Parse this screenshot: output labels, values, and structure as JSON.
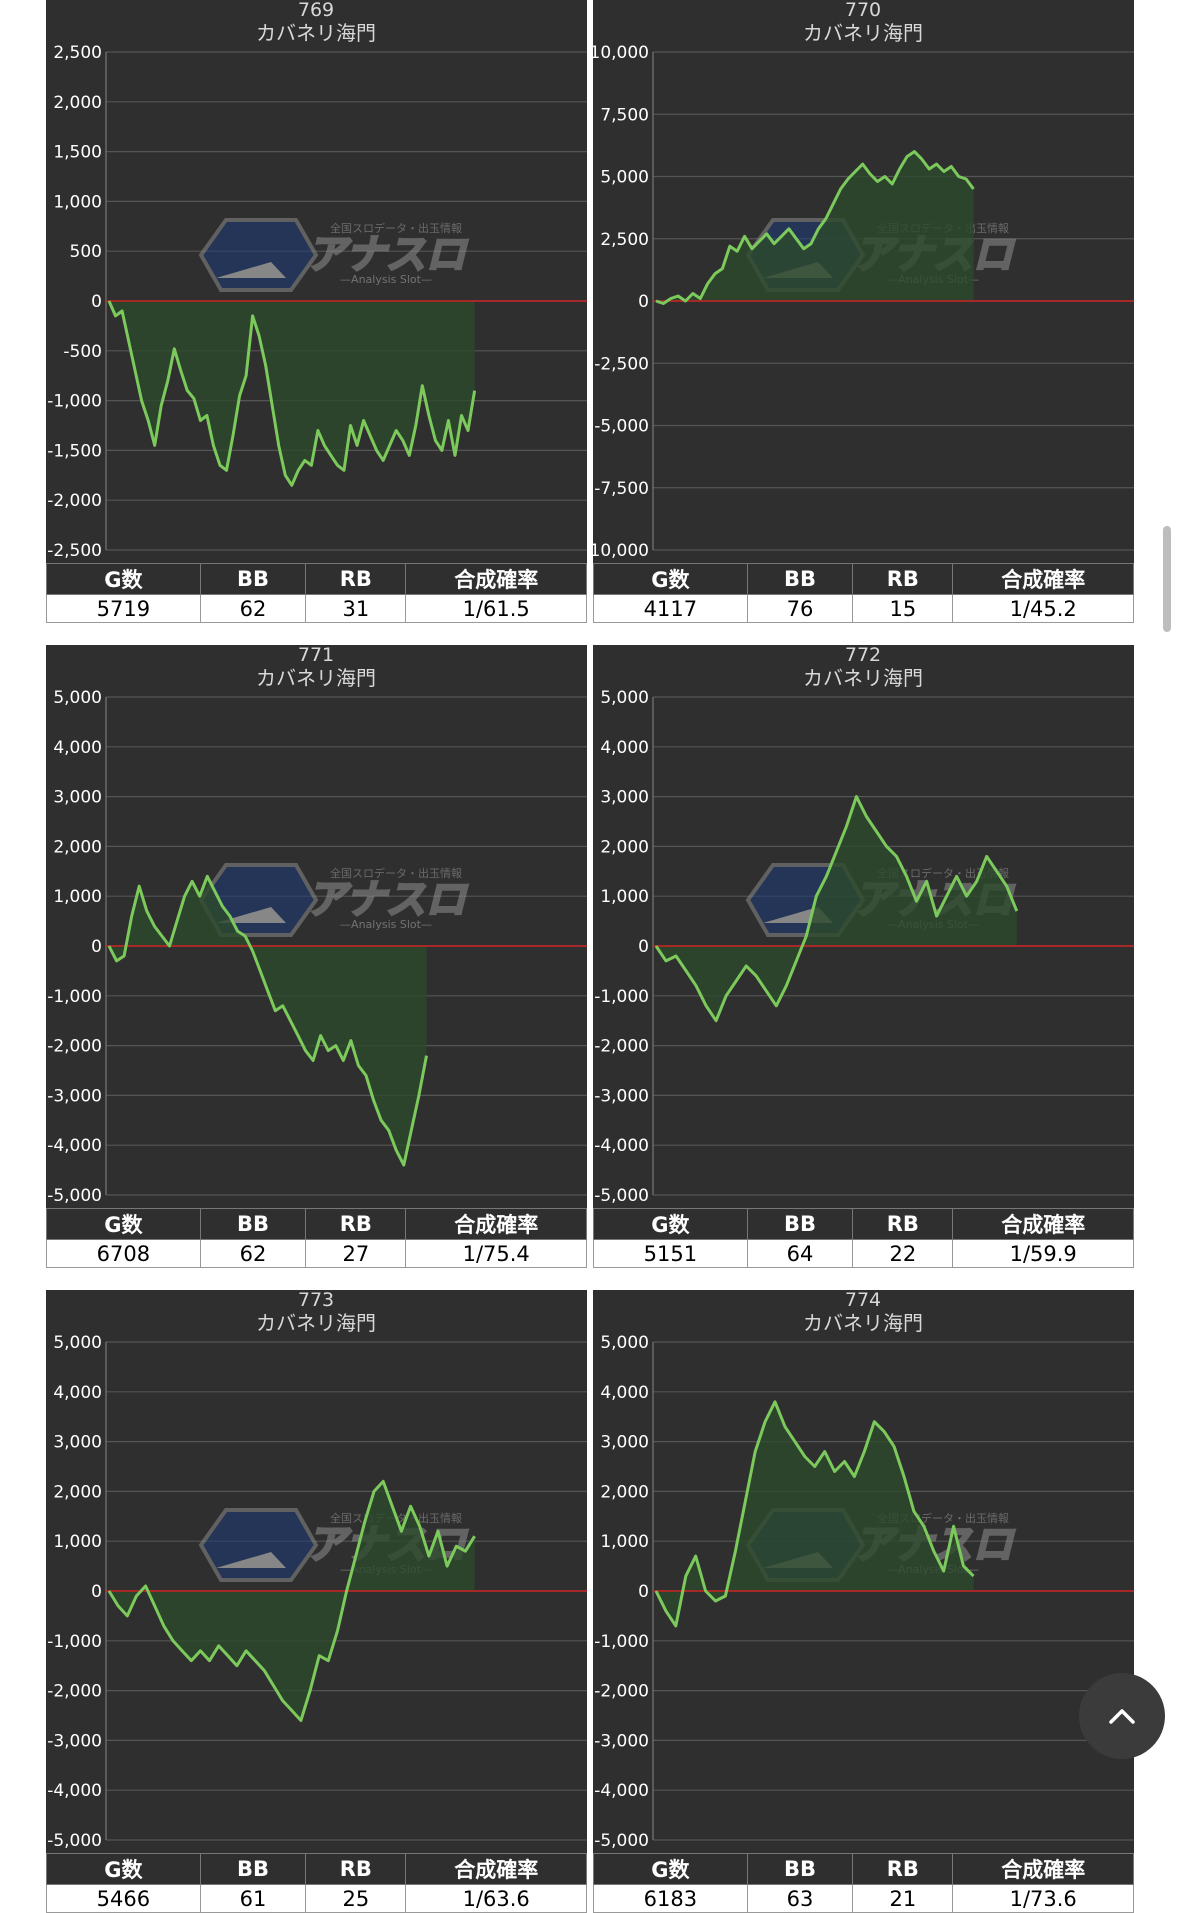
{
  "stats_headers": [
    "G数",
    "BB",
    "RB",
    "合成確率"
  ],
  "colors": {
    "panel": "#2f2f2f",
    "line": "#7cc95c",
    "fill": "#2c4a2c",
    "zero_line": "#cc2222",
    "grid": "#555555"
  },
  "watermark": {
    "brand": "アナスロ",
    "tagline": "全国スロデータ・出玉情報",
    "sub": "—Analysis Slot—"
  },
  "charts": [
    {
      "machine_no": "769",
      "machine_name": "カバネリ海門",
      "yticks": [
        "2,500",
        "2,000",
        "1,500",
        "1,000",
        "500",
        "0",
        "-500",
        "-1,000",
        "-1,500",
        "-2,000",
        "-2,500"
      ],
      "stats": [
        "5719",
        "62",
        "31",
        "1/61.5"
      ]
    },
    {
      "machine_no": "770",
      "machine_name": "カバネリ海門",
      "yticks": [
        "10,000",
        "7,500",
        "5,000",
        "2,500",
        "0",
        "-2,500",
        "-5,000",
        "-7,500",
        "-10,000"
      ],
      "stats": [
        "4117",
        "76",
        "15",
        "1/45.2"
      ]
    },
    {
      "machine_no": "771",
      "machine_name": "カバネリ海門",
      "yticks": [
        "5,000",
        "4,000",
        "3,000",
        "2,000",
        "1,000",
        "0",
        "-1,000",
        "-2,000",
        "-3,000",
        "-4,000",
        "-5,000"
      ],
      "stats": [
        "6708",
        "62",
        "27",
        "1/75.4"
      ]
    },
    {
      "machine_no": "772",
      "machine_name": "カバネリ海門",
      "yticks": [
        "5,000",
        "4,000",
        "3,000",
        "2,000",
        "1,000",
        "0",
        "-1,000",
        "-2,000",
        "-3,000",
        "-4,000",
        "-5,000"
      ],
      "stats": [
        "5151",
        "64",
        "22",
        "1/59.9"
      ]
    },
    {
      "machine_no": "773",
      "machine_name": "カバネリ海門",
      "yticks": [
        "5,000",
        "4,000",
        "3,000",
        "2,000",
        "1,000",
        "0",
        "-1,000",
        "-2,000",
        "-3,000",
        "-4,000",
        "-5,000"
      ],
      "stats": [
        "5466",
        "61",
        "25",
        "1/63.6"
      ]
    },
    {
      "machine_no": "774",
      "machine_name": "カバネリ海門",
      "yticks": [
        "5,000",
        "4,000",
        "3,000",
        "2,000",
        "1,000",
        "0",
        "-1,000",
        "-2,000",
        "-3,000",
        "-4,000",
        "-5,000"
      ],
      "stats": [
        "6183",
        "63",
        "21",
        "1/73.6"
      ]
    }
  ],
  "chart_data": [
    {
      "type": "area",
      "ylim": [
        -2500,
        2500
      ],
      "grid": true,
      "x_max_games": 5719,
      "y": [
        0,
        -150,
        -100,
        -400,
        -700,
        -1000,
        -1200,
        -1450,
        -1050,
        -800,
        -480,
        -700,
        -900,
        -980,
        -1200,
        -1150,
        -1450,
        -1650,
        -1700,
        -1350,
        -950,
        -750,
        -150,
        -350,
        -650,
        -1050,
        -1450,
        -1750,
        -1850,
        -1700,
        -1600,
        -1650,
        -1300,
        -1450,
        -1550,
        -1650,
        -1700,
        -1250,
        -1450,
        -1200,
        -1350,
        -1500,
        -1600,
        -1450,
        -1300,
        -1400,
        -1550,
        -1250,
        -850,
        -1150,
        -1400,
        -1500,
        -1200,
        -1550,
        -1150,
        -1300,
        -900
      ]
    },
    {
      "type": "area",
      "ylim": [
        -10000,
        10000
      ],
      "grid": true,
      "x_max_games": 4117,
      "y": [
        0,
        -100,
        100,
        200,
        0,
        300,
        100,
        700,
        1100,
        1300,
        2200,
        2000,
        2600,
        2100,
        2400,
        2700,
        2300,
        2600,
        2900,
        2500,
        2100,
        2300,
        2900,
        3300,
        3900,
        4500,
        4900,
        5200,
        5500,
        5100,
        4800,
        5000,
        4700,
        5300,
        5800,
        6000,
        5700,
        5300,
        5500,
        5200,
        5400,
        5000,
        4900,
        4500
      ]
    },
    {
      "type": "area",
      "ylim": [
        -5000,
        5000
      ],
      "grid": true,
      "x_max_games": 6708,
      "y": [
        0,
        -300,
        -200,
        600,
        1200,
        700,
        400,
        200,
        0,
        500,
        1000,
        1300,
        1000,
        1400,
        1100,
        800,
        600,
        300,
        200,
        -100,
        -500,
        -900,
        -1300,
        -1200,
        -1500,
        -1800,
        -2100,
        -2300,
        -1800,
        -2100,
        -2000,
        -2300,
        -1900,
        -2400,
        -2600,
        -3100,
        -3500,
        -3700,
        -4100,
        -4400,
        -3700,
        -3000,
        -2200
      ]
    },
    {
      "type": "area",
      "ylim": [
        -5000,
        5000
      ],
      "grid": true,
      "x_max_games": 5151,
      "y": [
        0,
        -300,
        -200,
        -500,
        -800,
        -1200,
        -1500,
        -1000,
        -700,
        -400,
        -600,
        -900,
        -1200,
        -800,
        -300,
        200,
        1000,
        1400,
        1900,
        2400,
        3000,
        2600,
        2300,
        2000,
        1800,
        1400,
        900,
        1300,
        600,
        1000,
        1400,
        1000,
        1300,
        1800,
        1500,
        1200,
        700
      ]
    },
    {
      "type": "area",
      "ylim": [
        -5000,
        5000
      ],
      "grid": true,
      "x_max_games": 5466,
      "y": [
        0,
        -300,
        -500,
        -100,
        100,
        -300,
        -700,
        -1000,
        -1200,
        -1400,
        -1200,
        -1400,
        -1100,
        -1300,
        -1500,
        -1200,
        -1400,
        -1600,
        -1900,
        -2200,
        -2400,
        -2600,
        -2000,
        -1300,
        -1400,
        -800,
        0,
        700,
        1400,
        2000,
        2200,
        1700,
        1200,
        1700,
        1300,
        700,
        1200,
        500,
        900,
        800,
        1100
      ]
    },
    {
      "type": "area",
      "ylim": [
        -5000,
        5000
      ],
      "grid": true,
      "x_max_games": 6183,
      "y": [
        0,
        -400,
        -700,
        300,
        700,
        0,
        -200,
        -100,
        800,
        1800,
        2800,
        3400,
        3800,
        3300,
        3000,
        2700,
        2500,
        2800,
        2400,
        2600,
        2300,
        2800,
        3400,
        3200,
        2900,
        2300,
        1600,
        1300,
        800,
        400,
        1300,
        500,
        300
      ]
    }
  ]
}
